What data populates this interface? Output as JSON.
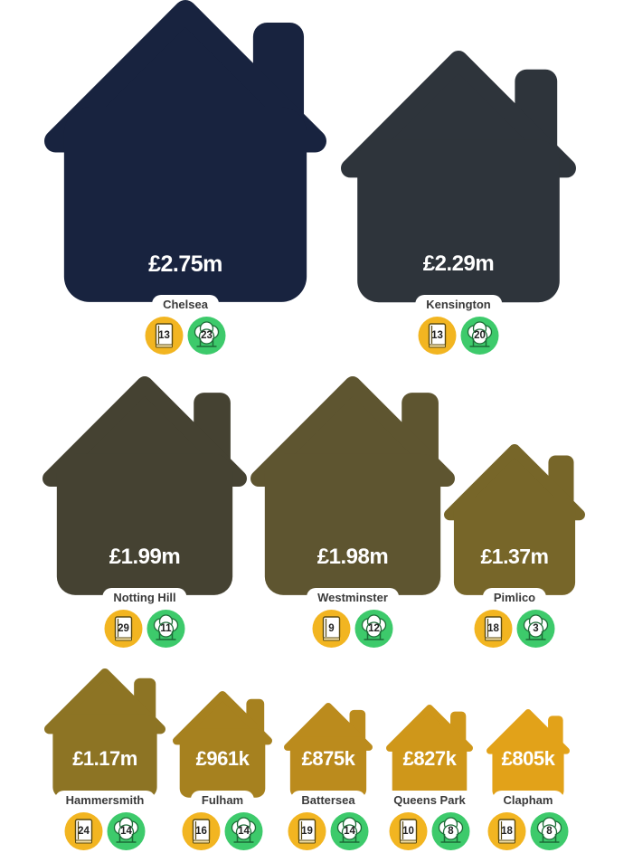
{
  "chart_data": {
    "type": "pictograph",
    "colors": [
      "#18233f",
      "#2e343b",
      "#454232",
      "#5e5530",
      "#776629",
      "#8d7424",
      "#a6811f",
      "#bb8b1d",
      "#cf971a",
      "#e2a219",
      "#efb013"
    ],
    "areas": [
      {
        "name": "Chelsea",
        "price": 2.75,
        "price_label": "£2.75m",
        "schools": 13,
        "parks": 23
      },
      {
        "name": "Kensington",
        "price": 2.29,
        "price_label": "£2.29m",
        "schools": 13,
        "parks": 20
      },
      {
        "name": "Notting Hill",
        "price": 1.99,
        "price_label": "£1.99m",
        "schools": 29,
        "parks": 11
      },
      {
        "name": "Westminster",
        "price": 1.98,
        "price_label": "£1.98m",
        "schools": 9,
        "parks": 12
      },
      {
        "name": "Pimlico",
        "price": 1.37,
        "price_label": "£1.37m",
        "schools": 18,
        "parks": 3
      },
      {
        "name": "Hammersmith",
        "price": 1.17,
        "price_label": "£1.17m",
        "schools": 24,
        "parks": 14
      },
      {
        "name": "Fulham",
        "price": 0.961,
        "price_label": "£961k",
        "schools": 16,
        "parks": 14
      },
      {
        "name": "Battersea",
        "price": 0.875,
        "price_label": "£875k",
        "schools": 19,
        "parks": 14
      },
      {
        "name": "Queens Park",
        "price": 0.827,
        "price_label": "£827k",
        "schools": 10,
        "parks": 8
      },
      {
        "name": "Clapham",
        "price": 0.805,
        "price_label": "£805k",
        "schools": 18,
        "parks": 8
      }
    ],
    "icons": {
      "schools": "book-icon",
      "parks": "tree-icon"
    }
  }
}
